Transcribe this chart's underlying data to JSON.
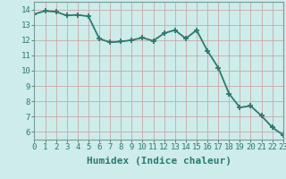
{
  "x": [
    0,
    1,
    2,
    3,
    4,
    5,
    6,
    7,
    8,
    9,
    10,
    11,
    12,
    13,
    14,
    15,
    16,
    17,
    18,
    19,
    20,
    21,
    22,
    23
  ],
  "y": [
    13.7,
    13.9,
    13.85,
    13.6,
    13.65,
    13.55,
    12.1,
    11.85,
    11.9,
    12.0,
    12.15,
    11.95,
    12.45,
    12.65,
    12.1,
    12.65,
    11.3,
    10.2,
    8.5,
    7.6,
    7.7,
    7.05,
    6.3,
    5.8
  ],
  "line_color": "#2d7a6e",
  "marker_color": "#2d7a6e",
  "bg_color": "#cdecea",
  "grid_color_major": "#c9a8a8",
  "xlabel": "Humidex (Indice chaleur)",
  "xlim": [
    0,
    23
  ],
  "ylim": [
    5.5,
    14.5
  ],
  "yticks": [
    6,
    7,
    8,
    9,
    10,
    11,
    12,
    13,
    14
  ],
  "xticks": [
    0,
    1,
    2,
    3,
    4,
    5,
    6,
    7,
    8,
    9,
    10,
    11,
    12,
    13,
    14,
    15,
    16,
    17,
    18,
    19,
    20,
    21,
    22,
    23
  ],
  "marker_size": 4,
  "line_width": 1.3,
  "xlabel_fontsize": 8,
  "tick_fontsize": 6.5,
  "tick_color": "#2d7a6e"
}
